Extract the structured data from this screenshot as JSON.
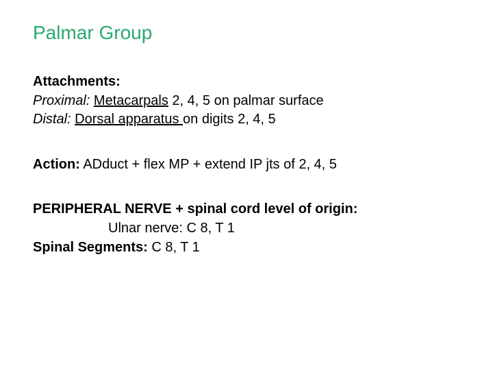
{
  "colors": {
    "title": "#2aa86f",
    "body": "#000000",
    "background": "#ffffff"
  },
  "typography": {
    "title_fontsize_pt": 21,
    "body_fontsize_pt": 15,
    "font_family": "Arial"
  },
  "title": "Palmar Group",
  "attachments": {
    "heading": "Attachments:",
    "proximal_label": "Proximal:",
    "proximal_underlined": "Metacarpals",
    "proximal_rest": " 2, 4, 5 on palmar surface",
    "distal_label": "Distal:",
    "distal_underlined": "Dorsal apparatus ",
    "distal_rest": "on digits 2, 4, 5"
  },
  "action": {
    "label": "Action:",
    "text": " ADduct + flex MP + extend IP jts of 2, 4, 5"
  },
  "nerve": {
    "heading": "PERIPHERAL NERVE + spinal cord level of origin:",
    "line1": "Ulnar nerve: C 8, T 1",
    "segments_label": "Spinal Segments:",
    "segments_text": " C 8, T 1"
  }
}
